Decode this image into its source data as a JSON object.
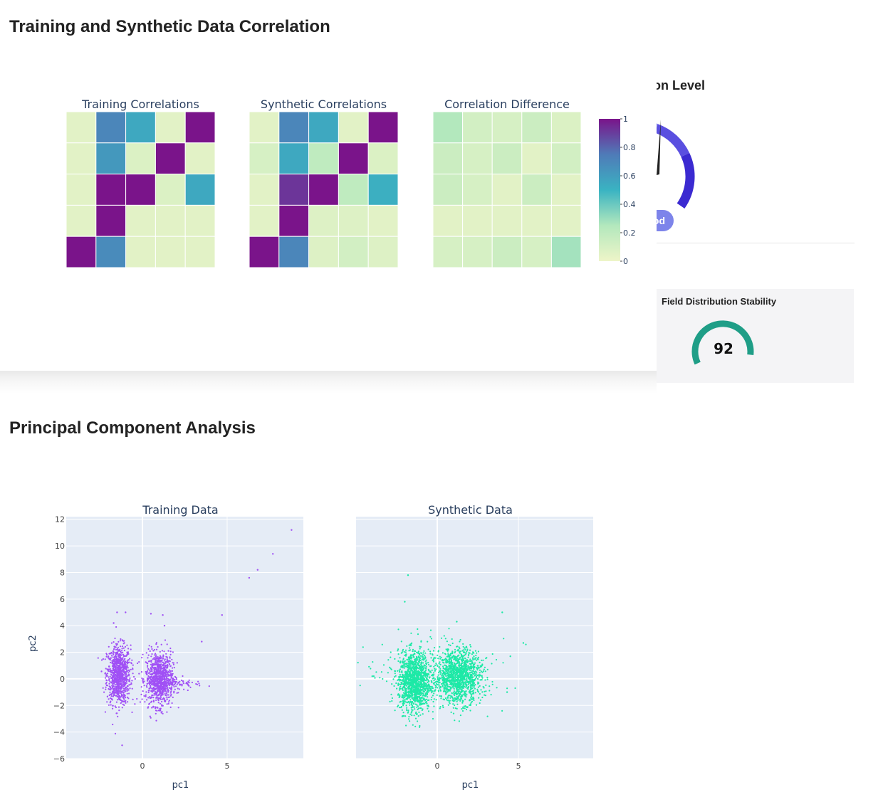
{
  "sections": {
    "correlation_title": "Training and Synthetic Data Correlation",
    "pca_title": "Principal Component Analysis"
  },
  "side_panel": {
    "gauge_title": "ection Level",
    "gauge_badge": "od",
    "stability_label": "Field Distribution Stability",
    "stability_value": "92",
    "stability_score": 92
  },
  "colors": {
    "colorscale": [
      "#eef5c8",
      "#b3e8bd",
      "#3ab3c2",
      "#4f7bb8",
      "#7a148a"
    ],
    "training_points": "#a050f5",
    "synthetic_points": "#1de9a6",
    "plot_bg": "#e5ecf6",
    "gauge_segments": [
      "#7c7fe8",
      "#5a4fe0",
      "#3b2ad1"
    ],
    "stability_arc": "#1f9e87"
  },
  "chart_data": [
    {
      "type": "heatmap",
      "title": "Training Correlations",
      "z": [
        [
          0.05,
          0.7,
          0.55,
          0.05,
          1.0
        ],
        [
          0.05,
          0.62,
          0.08,
          1.0,
          0.05
        ],
        [
          0.05,
          1.0,
          1.0,
          0.08,
          0.55
        ],
        [
          0.05,
          1.0,
          0.05,
          0.05,
          0.05
        ],
        [
          1.0,
          0.68,
          0.05,
          0.05,
          0.05
        ]
      ],
      "zrange": [
        0,
        1
      ]
    },
    {
      "type": "heatmap",
      "title": "Synthetic Correlations",
      "z": [
        [
          0.05,
          0.7,
          0.55,
          0.05,
          1.0
        ],
        [
          0.1,
          0.55,
          0.2,
          1.0,
          0.08
        ],
        [
          0.05,
          0.92,
          1.0,
          0.2,
          0.52
        ],
        [
          0.05,
          1.0,
          0.07,
          0.07,
          0.05
        ],
        [
          1.0,
          0.7,
          0.07,
          0.12,
          0.07
        ]
      ],
      "zrange": [
        0,
        1
      ]
    },
    {
      "type": "heatmap",
      "title": "Correlation Difference",
      "z": [
        [
          0.25,
          0.12,
          0.1,
          0.15,
          0.08
        ],
        [
          0.15,
          0.1,
          0.15,
          0.05,
          0.12
        ],
        [
          0.15,
          0.1,
          0.05,
          0.15,
          0.05
        ],
        [
          0.05,
          0.05,
          0.05,
          0.05,
          0.05
        ],
        [
          0.1,
          0.1,
          0.15,
          0.1,
          0.28
        ]
      ],
      "zrange": [
        0,
        1
      ]
    },
    {
      "type": "colorbar",
      "ticks": [
        "1",
        "0.8",
        "0.6",
        "0.4",
        "0.2",
        "0"
      ],
      "tick_values": [
        1,
        0.8,
        0.6,
        0.4,
        0.2,
        0
      ]
    },
    {
      "type": "scatter",
      "title": "Training Data",
      "xlabel": "pc1",
      "ylabel": "pc2",
      "xlim": [
        -4.5,
        9.5
      ],
      "ylim": [
        -6,
        12.2
      ],
      "xticks": [
        "0",
        "5"
      ],
      "xtick_values": [
        0,
        5
      ],
      "yticks": [
        "12",
        "10",
        "8",
        "6",
        "4",
        "2",
        "0",
        "−2",
        "−4",
        "−6"
      ],
      "ytick_values": [
        12,
        10,
        8,
        6,
        4,
        2,
        0,
        -2,
        -4,
        -6
      ],
      "clusters": [
        {
          "cx": -1.4,
          "cy": 0.3,
          "sx": 0.35,
          "sy": 1.1,
          "n": 900
        },
        {
          "cx": 1.0,
          "cy": 0.0,
          "sx": 0.4,
          "sy": 1.0,
          "n": 900
        },
        {
          "cx": 2.3,
          "cy": -0.3,
          "sx": 0.6,
          "sy": 0.3,
          "n": 60
        }
      ],
      "points": [
        [
          -1.5,
          5.0
        ],
        [
          -1.0,
          5.0
        ],
        [
          0.5,
          4.9
        ],
        [
          1.2,
          4.8
        ],
        [
          -1.7,
          4.2
        ],
        [
          1.3,
          4.0
        ],
        [
          4.7,
          4.8
        ],
        [
          3.5,
          2.8
        ],
        [
          6.3,
          7.6
        ],
        [
          6.8,
          8.2
        ],
        [
          7.7,
          9.4
        ],
        [
          8.8,
          11.2
        ],
        [
          -1.2,
          -5.0
        ]
      ]
    },
    {
      "type": "scatter",
      "title": "Synthetic Data",
      "xlabel": "pc1",
      "ylabel": "",
      "xlim": [
        -5,
        9.6
      ],
      "ylim": [
        -6,
        12.2
      ],
      "xticks": [
        "0",
        "5"
      ],
      "xtick_values": [
        0,
        5
      ],
      "clusters": [
        {
          "cx": -1.4,
          "cy": -0.2,
          "sx": 0.5,
          "sy": 1.1,
          "n": 1300
        },
        {
          "cx": 1.3,
          "cy": 0.2,
          "sx": 0.7,
          "sy": 1.0,
          "n": 1300
        },
        {
          "cx": 0.0,
          "cy": 0.5,
          "sx": 2.2,
          "sy": 1.2,
          "n": 160
        }
      ],
      "points": [
        [
          -1.8,
          7.8
        ],
        [
          1.2,
          4.3
        ],
        [
          4.0,
          5.0
        ],
        [
          5.3,
          2.7
        ],
        [
          4.5,
          1.7
        ],
        [
          4.3,
          -1.0
        ],
        [
          -4.0,
          0.2
        ],
        [
          -2.0,
          5.8
        ]
      ]
    }
  ]
}
